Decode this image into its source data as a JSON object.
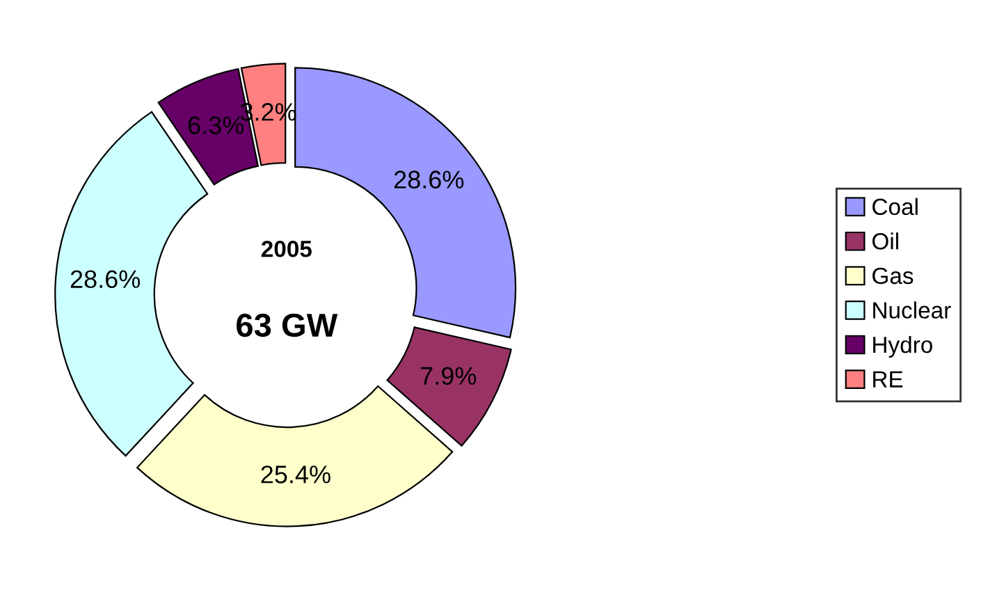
{
  "chart_data": {
    "type": "donut",
    "categories": [
      "Coal",
      "Oil",
      "Gas",
      "Nuclear",
      "Hydro",
      "RE"
    ],
    "values": [
      28.6,
      7.9,
      25.4,
      28.6,
      6.3,
      3.2
    ],
    "colors": [
      "#9999ff",
      "#993366",
      "#ffffcc",
      "#ccffff",
      "#660066",
      "#ff8080"
    ],
    "value_labels": [
      "28.6%",
      "7.9%",
      "25.4%",
      "28.6%",
      "6.3%",
      "3.2%"
    ],
    "annotations": [
      "2005",
      "63 GW"
    ],
    "legend": "right"
  }
}
